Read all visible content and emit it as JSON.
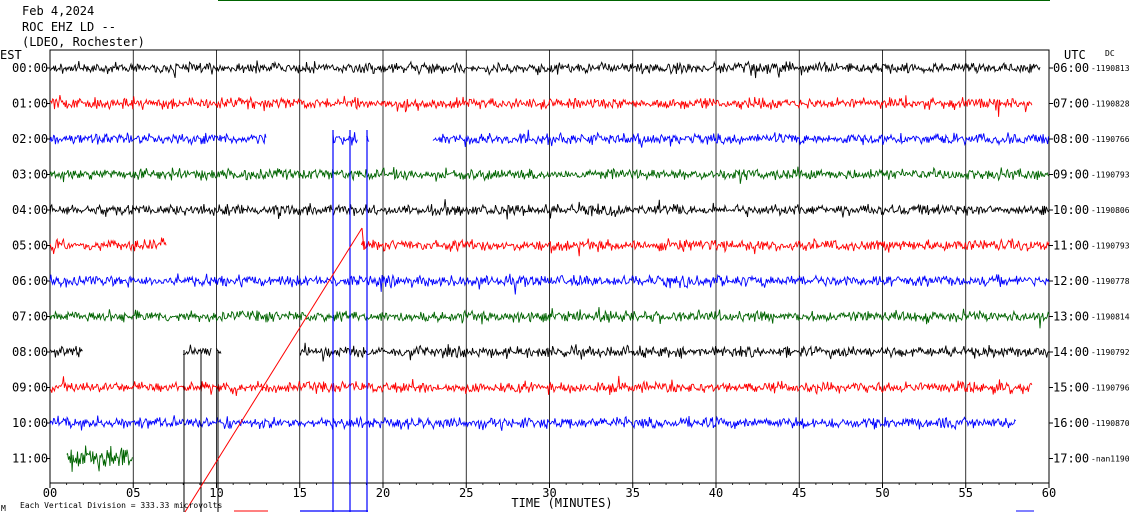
{
  "header": {
    "date": "Feb 4,2024",
    "station": "ROC EHZ LD --",
    "network": "(LDEO, Rochester)",
    "left_tz": "EST",
    "right_tz": "UTC",
    "dc_label": "DC"
  },
  "footer": {
    "scale_note": "Each Vertical Division = 333.33 microvolts",
    "corner_mark": "M"
  },
  "colors": {
    "cycle": [
      "#000000",
      "#ff0000",
      "#0000ff",
      "#006400"
    ],
    "border": "#000000",
    "grid": "#000000",
    "top_bar": "#006400"
  },
  "chart_data": {
    "type": "line",
    "title": "",
    "xlabel": "TIME (MINUTES)",
    "ylabel": "",
    "xlim": [
      0,
      60
    ],
    "x_ticks": [
      "00",
      "05",
      "10",
      "15",
      "20",
      "25",
      "30",
      "35",
      "40",
      "45",
      "50",
      "55",
      "60"
    ],
    "rows": [
      {
        "est": "00:00",
        "utc": "06:00",
        "dc": "-1190813",
        "color": "#000000",
        "segments": [
          [
            0,
            59.5
          ]
        ]
      },
      {
        "est": "01:00",
        "utc": "07:00",
        "dc": "-1190828",
        "color": "#ff0000",
        "segments": [
          [
            0,
            59
          ]
        ]
      },
      {
        "est": "02:00",
        "utc": "08:00",
        "dc": "-1190766",
        "color": "#0000ff",
        "segments": [
          [
            0,
            13
          ],
          [
            17,
            18.5
          ],
          [
            19,
            19.2
          ],
          [
            23,
            60
          ]
        ]
      },
      {
        "est": "03:00",
        "utc": "09:00",
        "dc": "-1190793",
        "color": "#006400",
        "segments": [
          [
            0,
            60
          ]
        ]
      },
      {
        "est": "04:00",
        "utc": "10:00",
        "dc": "-1190806",
        "color": "#000000",
        "segments": [
          [
            0,
            60
          ]
        ]
      },
      {
        "est": "05:00",
        "utc": "11:00",
        "dc": "-1190793",
        "color": "#ff0000",
        "segments": [
          [
            0,
            7
          ],
          [
            18.7,
            60
          ]
        ]
      },
      {
        "est": "06:00",
        "utc": "12:00",
        "dc": "-1190778",
        "color": "#0000ff",
        "segments": [
          [
            0,
            60
          ]
        ]
      },
      {
        "est": "07:00",
        "utc": "13:00",
        "dc": "-1190814",
        "color": "#006400",
        "segments": [
          [
            0,
            60
          ]
        ]
      },
      {
        "est": "08:00",
        "utc": "14:00",
        "dc": "-1190792",
        "color": "#000000",
        "segments": [
          [
            0,
            2
          ],
          [
            8,
            9.7
          ],
          [
            10,
            10.3
          ],
          [
            15,
            60
          ]
        ]
      },
      {
        "est": "09:00",
        "utc": "15:00",
        "dc": "-1190796",
        "color": "#ff0000",
        "segments": [
          [
            0,
            59
          ]
        ]
      },
      {
        "est": "10:00",
        "utc": "16:00",
        "dc": "-1190870",
        "color": "#0000ff",
        "segments": [
          [
            0,
            58
          ]
        ]
      },
      {
        "est": "11:00",
        "utc": "17:00",
        "dc": "-nan1190",
        "color": "#006400",
        "segments": [
          [
            1,
            5
          ]
        ]
      }
    ]
  }
}
